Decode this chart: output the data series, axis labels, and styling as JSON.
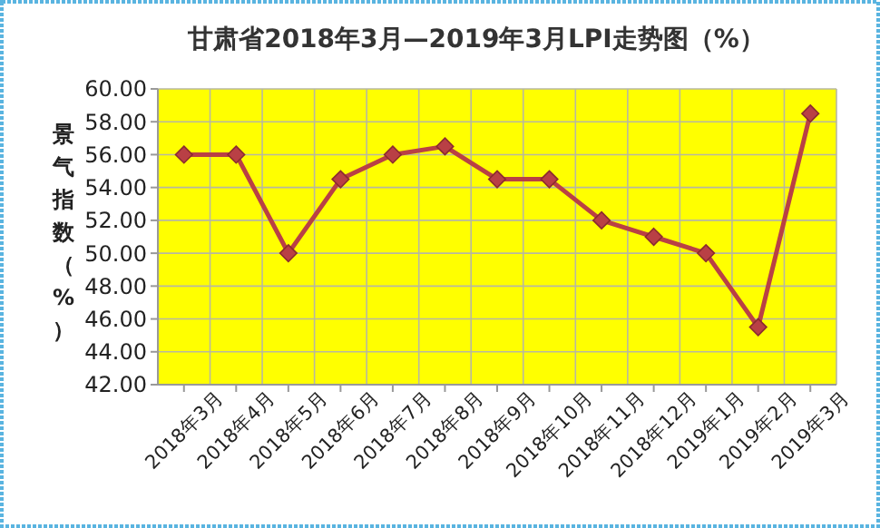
{
  "chart_data": {
    "type": "line",
    "title": "甘肃省2018年3月—2019年3月LPI走势图（%）",
    "ylabel": "景气指数（%）",
    "categories": [
      "2018年3月",
      "2018年4月",
      "2018年5月",
      "2018年6月",
      "2018年7月",
      "2018年8月",
      "2018年9月",
      "2018年10月",
      "2018年11月",
      "2018年12月",
      "2019年1月",
      "2019年2月",
      "2019年3月"
    ],
    "series": [
      {
        "color": "#b94045",
        "values": [
          56,
          56,
          50,
          54.5,
          56,
          56.5,
          54.5,
          54.5,
          52,
          51,
          50,
          45.5,
          58.5
        ]
      }
    ],
    "ylim": [
      42,
      60
    ],
    "yticks": [
      {
        "value": 42,
        "label": "42.00"
      },
      {
        "value": 44,
        "label": "44.00"
      },
      {
        "value": 46,
        "label": "46.00"
      },
      {
        "value": 48,
        "label": "48.00"
      },
      {
        "value": 50,
        "label": "50.00"
      },
      {
        "value": 52,
        "label": "52.00"
      },
      {
        "value": 54,
        "label": "54.00"
      },
      {
        "value": 56,
        "label": "56.00"
      },
      {
        "value": 58,
        "label": "58.00"
      },
      {
        "value": 60,
        "label": "60.00"
      }
    ],
    "grid": true,
    "marker": "diamond",
    "line_style": "solid"
  }
}
